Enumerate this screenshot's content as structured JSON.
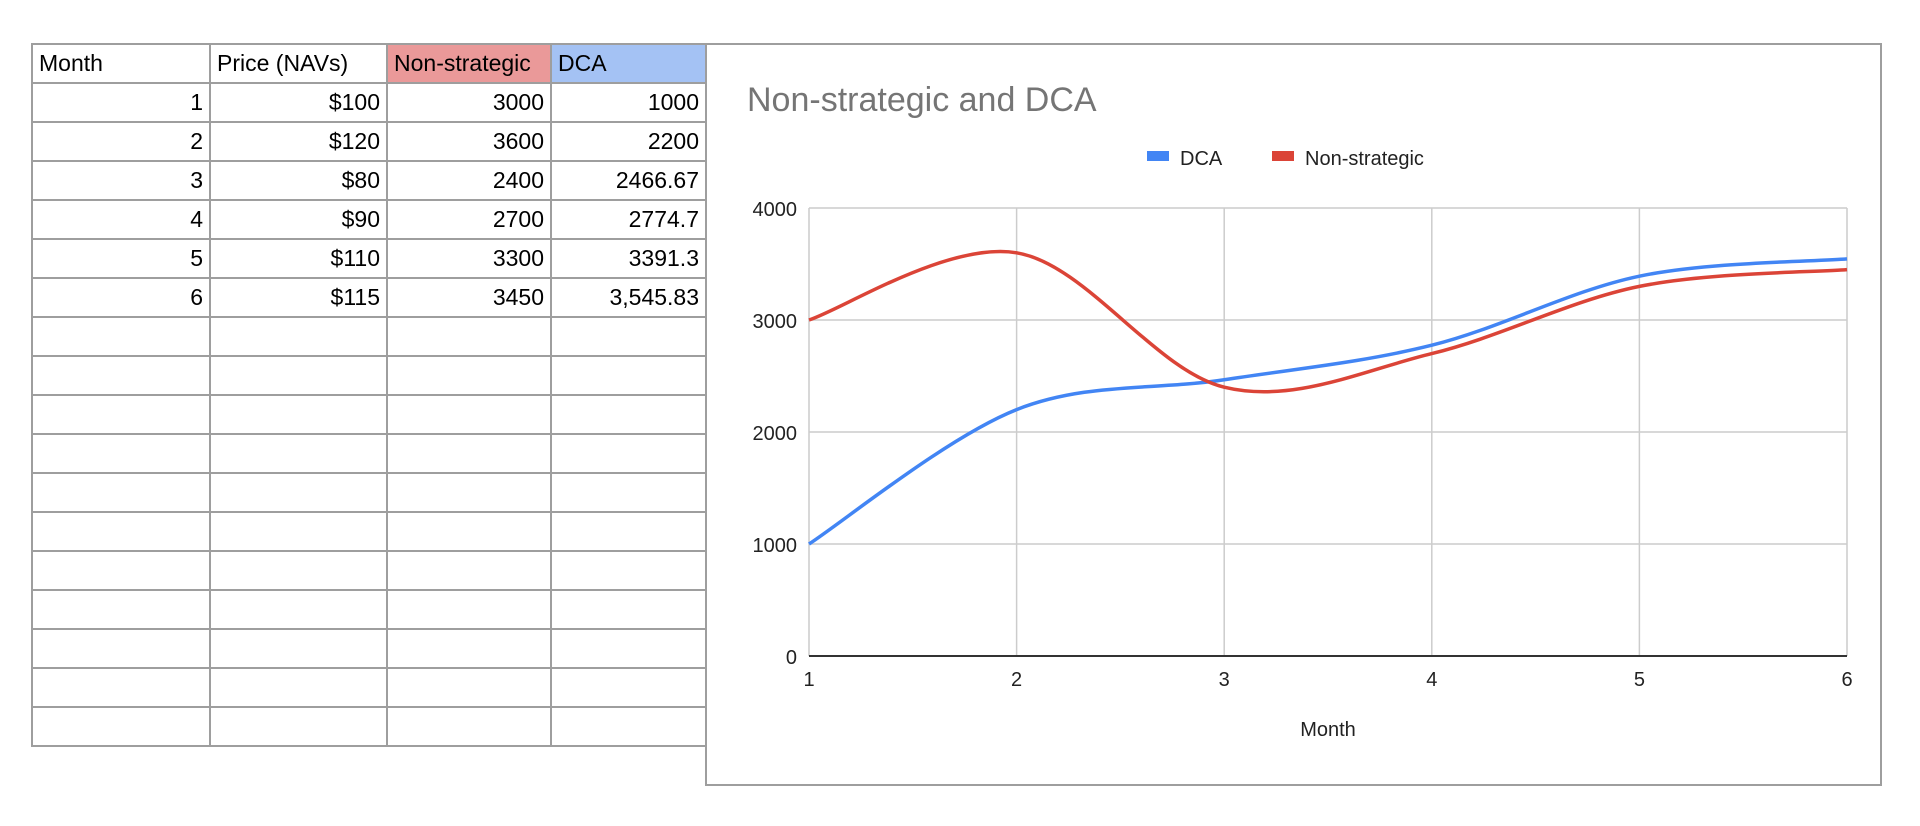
{
  "table": {
    "headers": [
      "Month",
      "Price (NAVs)",
      "Non-strategic",
      "DCA"
    ],
    "header_colors": [
      "#ffffff",
      "#ffffff",
      "#ea9999",
      "#a4c2f4"
    ],
    "rows": [
      [
        "1",
        "$100",
        "3000",
        "1000"
      ],
      [
        "2",
        "$120",
        "3600",
        "2200"
      ],
      [
        "3",
        "$80",
        "2400",
        "2466.67"
      ],
      [
        "4",
        "$90",
        "2700",
        "2774.7"
      ],
      [
        "5",
        "$110",
        "3300",
        "3391.3"
      ],
      [
        "6",
        "$115",
        "3450",
        "3,545.83"
      ]
    ],
    "empty_rows": 11
  },
  "chart_data": {
    "type": "line",
    "title": "Non-strategic and DCA",
    "xlabel": "Month",
    "ylabel": "",
    "x": [
      1,
      2,
      3,
      4,
      5,
      6
    ],
    "xlim": [
      1,
      6
    ],
    "ylim": [
      0,
      4000
    ],
    "xticks": [
      "1",
      "2",
      "3",
      "4",
      "5",
      "6"
    ],
    "yticks": [
      "0",
      "1000",
      "2000",
      "3000",
      "4000"
    ],
    "grid": true,
    "smooth": true,
    "legend_position": "top",
    "series": [
      {
        "name": "DCA",
        "color": "#4285f4",
        "values": [
          1000,
          2200,
          2466.67,
          2774.7,
          3391.3,
          3545.83
        ]
      },
      {
        "name": "Non-strategic",
        "color": "#db4437",
        "values": [
          3000,
          3600,
          2400,
          2700,
          3300,
          3450
        ]
      }
    ]
  }
}
